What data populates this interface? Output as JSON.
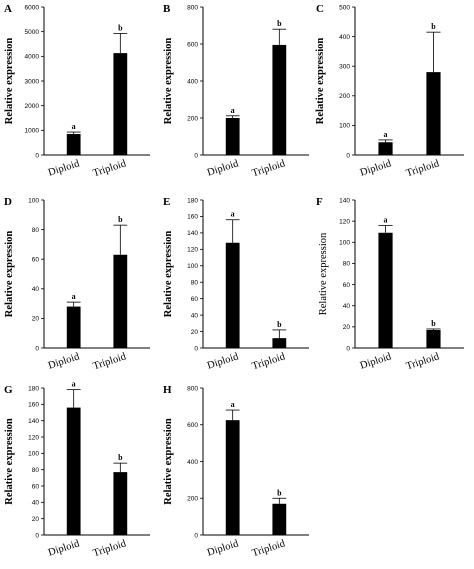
{
  "chart_data": [
    {
      "panel": "A",
      "type": "bar",
      "categories": [
        "Diploid",
        "Triploid"
      ],
      "values": [
        850,
        4130
      ],
      "errors": [
        80,
        800
      ],
      "significance": [
        "a",
        "b"
      ],
      "ylabel": "Relative expression",
      "ylim": [
        0,
        6000
      ],
      "yticks": [
        0,
        1000,
        2000,
        3000,
        4000,
        5000,
        6000
      ]
    },
    {
      "panel": "B",
      "type": "bar",
      "categories": [
        "Diploid",
        "Triploid"
      ],
      "values": [
        200,
        595
      ],
      "errors": [
        12,
        85
      ],
      "significance": [
        "a",
        "b"
      ],
      "ylabel": "Relative expression",
      "ylim": [
        0,
        800
      ],
      "yticks": [
        0,
        200,
        400,
        600,
        800
      ]
    },
    {
      "panel": "C",
      "type": "bar",
      "categories": [
        "Diploid",
        "Triploid"
      ],
      "values": [
        43,
        280
      ],
      "errors": [
        8,
        135
      ],
      "significance": [
        "a",
        "b"
      ],
      "ylabel": "Relative expression",
      "ylim": [
        0,
        500
      ],
      "yticks": [
        0,
        100,
        200,
        300,
        400,
        500
      ]
    },
    {
      "panel": "D",
      "type": "bar",
      "categories": [
        "Diploid",
        "Triploid"
      ],
      "values": [
        28,
        63
      ],
      "errors": [
        3,
        20
      ],
      "significance": [
        "a",
        "b"
      ],
      "ylabel": "Relative expression",
      "ylim": [
        0,
        100
      ],
      "yticks": [
        0,
        20,
        40,
        60,
        80,
        100
      ]
    },
    {
      "panel": "E",
      "type": "bar",
      "categories": [
        "Diploid",
        "Triploid"
      ],
      "values": [
        128,
        12
      ],
      "errors": [
        28,
        10
      ],
      "significance": [
        "a",
        "b"
      ],
      "ylabel": "Relative expression",
      "ylim": [
        0,
        180
      ],
      "yticks": [
        0,
        20,
        40,
        60,
        80,
        100,
        120,
        140,
        160,
        180
      ]
    },
    {
      "panel": "F",
      "type": "bar",
      "categories": [
        "Diploid",
        "Triploid"
      ],
      "values": [
        109,
        17
      ],
      "errors": [
        7,
        1
      ],
      "significance": [
        "a",
        "b"
      ],
      "ylabel": "Relative expression",
      "ylim": [
        0,
        140
      ],
      "yticks": [
        0,
        20,
        40,
        60,
        80,
        100,
        120,
        140
      ]
    },
    {
      "panel": "G",
      "type": "bar",
      "categories": [
        "Diploid",
        "Triploid"
      ],
      "values": [
        156,
        77
      ],
      "errors": [
        22,
        11
      ],
      "significance": [
        "a",
        "b"
      ],
      "ylabel": "Relative expression",
      "ylim": [
        0,
        180
      ],
      "yticks": [
        0,
        20,
        40,
        60,
        80,
        100,
        120,
        140,
        160,
        180
      ]
    },
    {
      "panel": "H",
      "type": "bar",
      "categories": [
        "Diploid",
        "Triploid"
      ],
      "values": [
        625,
        170
      ],
      "errors": [
        55,
        30
      ],
      "significance": [
        "a",
        "b"
      ],
      "ylabel": "Relative expression",
      "ylim": [
        0,
        800
      ],
      "yticks": [
        0,
        200,
        400,
        600,
        800
      ]
    }
  ]
}
